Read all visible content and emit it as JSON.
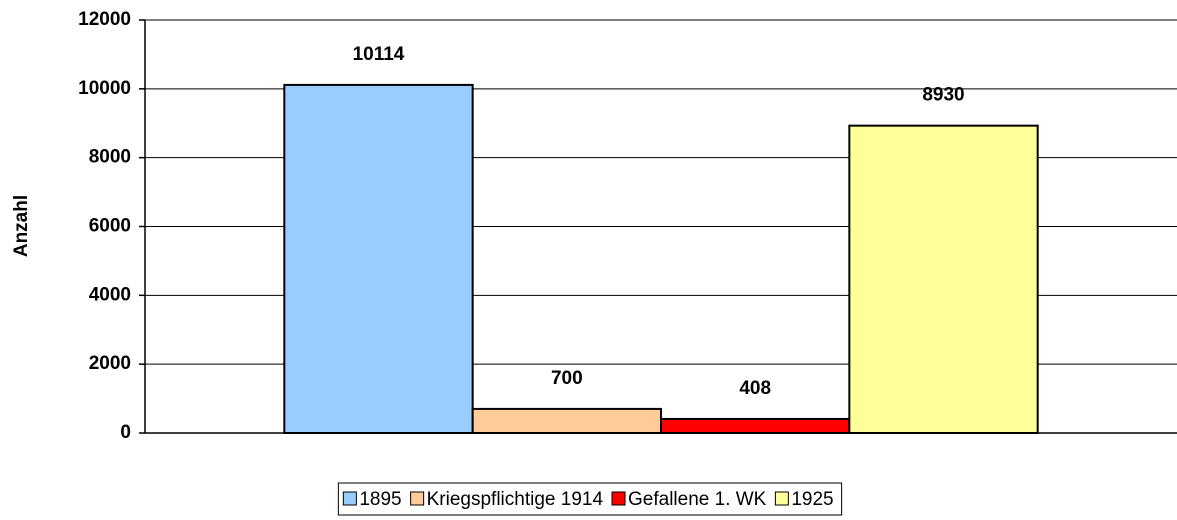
{
  "chart_data": {
    "type": "bar",
    "ylabel": "Anzahl",
    "categories": [
      null
    ],
    "series": [
      {
        "name": "1895",
        "color": "#99ccff",
        "values": [
          10114
        ]
      },
      {
        "name": "Kriegspflichtige 1914",
        "color": "#ffcc99",
        "values": [
          700
        ]
      },
      {
        "name": "Gefallene 1. WK",
        "color": "#ff0000",
        "values": [
          408
        ]
      },
      {
        "name": "1925",
        "color": "#ffff99",
        "values": [
          8930
        ]
      }
    ],
    "ylim": [
      0,
      12000
    ],
    "yticks": [
      0,
      2000,
      4000,
      6000,
      8000,
      10000,
      12000
    ],
    "grid": true,
    "legend": "bottom"
  }
}
